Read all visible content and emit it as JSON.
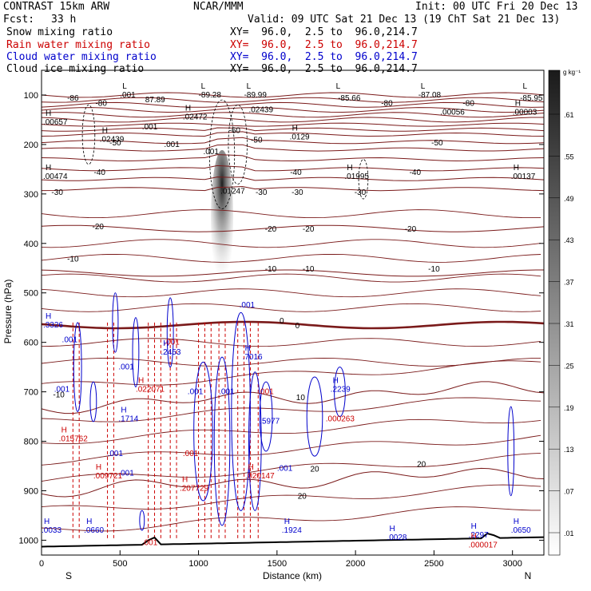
{
  "header": {
    "model": "CONTRAST 15km ARW",
    "org": "NCAR/MMM",
    "init": "Init: 00 UTC Fri 20 Dec 13",
    "fcst_label": "Fcst:",
    "fcst_value": "33 h",
    "valid": "Valid: 09 UTC Sat 21 Dec 13 (19 ChT Sat 21 Dec 13)",
    "fields": [
      {
        "name": "Snow mixing ratio",
        "xy": "XY=  96.0,  2.5 to  96.0,214.7",
        "color": "#000000"
      },
      {
        "name": "Rain water mixing ratio",
        "xy": "XY=  96.0,  2.5 to  96.0,214.7",
        "color": "#cc0000"
      },
      {
        "name": "Cloud water mixing ratio",
        "xy": "XY=  96.0,  2.5 to  96.0,214.7",
        "color": "#0000cc"
      },
      {
        "name": "Cloud ice mixing ratio",
        "xy": "XY=  96.0,  2.5 to  96.0,214.7",
        "color": "#000000"
      }
    ]
  },
  "colorbar": {
    "unit": "g kg⁻¹",
    "levels": [
      ".01",
      ".07",
      ".13",
      ".19",
      ".25",
      ".31",
      ".37",
      ".43",
      ".49",
      ".55",
      ".61"
    ]
  },
  "chart_data": {
    "type": "contour cross-section",
    "xlabel": "Distance (km)",
    "ylabel": "Pressure (hPa)",
    "xlim": [
      0,
      3200
    ],
    "ylim": [
      1030,
      50
    ],
    "x_ticks": [
      "0",
      "500",
      "1000",
      "1500",
      "2000",
      "2500",
      "3000"
    ],
    "y_ticks": [
      "100",
      "200",
      "300",
      "400",
      "500",
      "600",
      "700",
      "800",
      "900",
      "1000"
    ],
    "x_end_labels": {
      "left": "S",
      "right": "N"
    },
    "temperature_contours": [
      {
        "label": "-80",
        "p": 110
      },
      {
        "label": "-50",
        "p": 180
      },
      {
        "label": "-40",
        "p": 250
      },
      {
        "label": "-30",
        "p": 290
      },
      {
        "label": "-20",
        "p": 370
      },
      {
        "label": "-10",
        "p": 460
      },
      {
        "label": "0",
        "p": 565
      },
      {
        "label": "10",
        "p": 730
      },
      {
        "label": "20",
        "p": 900
      }
    ],
    "temp_labels": [
      {
        "t": "-86",
        "x": 200,
        "p": 105
      },
      {
        "t": "-80",
        "x": 380,
        "p": 115
      },
      {
        "t": "-85.66",
        "x": 1960,
        "p": 105
      },
      {
        "t": "-80",
        "x": 2200,
        "p": 115
      },
      {
        "t": "-80",
        "x": 2720,
        "p": 115
      },
      {
        "t": "-85.95",
        "x": 3120,
        "p": 105
      },
      {
        "t": "-60",
        "x": 1230,
        "p": 170
      },
      {
        "t": "-50",
        "x": 470,
        "p": 195
      },
      {
        "t": "-50",
        "x": 1370,
        "p": 190
      },
      {
        "t": "-50",
        "x": 2520,
        "p": 195
      },
      {
        "t": "-40",
        "x": 370,
        "p": 255
      },
      {
        "t": "-40",
        "x": 1620,
        "p": 255
      },
      {
        "t": "-40",
        "x": 2380,
        "p": 255
      },
      {
        "t": "-30",
        "x": 100,
        "p": 295
      },
      {
        "t": "-30",
        "x": 1400,
        "p": 295
      },
      {
        "t": "-30",
        "x": 1630,
        "p": 295
      },
      {
        "t": "-30",
        "x": 2030,
        "p": 295
      },
      {
        "t": "-20",
        "x": 360,
        "p": 365
      },
      {
        "t": "-20",
        "x": 1460,
        "p": 370
      },
      {
        "t": "-20",
        "x": 1700,
        "p": 370
      },
      {
        "t": "-20",
        "x": 2350,
        "p": 370
      },
      {
        "t": "-10",
        "x": 200,
        "p": 430
      },
      {
        "t": "-10",
        "x": 1460,
        "p": 450
      },
      {
        "t": "-10",
        "x": 1700,
        "p": 450
      },
      {
        "t": "-10",
        "x": 2500,
        "p": 450
      },
      {
        "t": "0",
        "x": 1530,
        "p": 555
      },
      {
        "t": "0",
        "x": 1630,
        "p": 565
      },
      {
        "t": "-10",
        "x": 110,
        "p": 705
      },
      {
        "t": "10",
        "x": 1650,
        "p": 710
      },
      {
        "t": "20",
        "x": 1740,
        "p": 855
      },
      {
        "t": "20",
        "x": 2420,
        "p": 845
      },
      {
        "t": "20",
        "x": 1660,
        "p": 910
      }
    ],
    "extrema_labels": [
      {
        "k": "L",
        "v": ".001",
        "x": 500,
        "p": 95,
        "c": "#000"
      },
      {
        "k": "",
        "v": "87.89",
        "x": 660,
        "p": 105,
        "c": "#000"
      },
      {
        "k": "L",
        "v": "-89.28",
        "x": 1000,
        "p": 95,
        "c": "#000"
      },
      {
        "k": "L",
        "v": "-89.99",
        "x": 1290,
        "p": 95,
        "c": "#000"
      },
      {
        "k": "",
        "v": ".02439",
        "x": 1320,
        "p": 125,
        "c": "#000"
      },
      {
        "k": "L",
        "v": "",
        "x": 1860,
        "p": 95,
        "c": "#000"
      },
      {
        "k": "L",
        "v": "-87.08",
        "x": 2400,
        "p": 95,
        "c": "#000"
      },
      {
        "k": "",
        "v": ".00056",
        "x": 2540,
        "p": 130,
        "c": "#000"
      },
      {
        "k": "L",
        "v": "",
        "x": 3050,
        "p": 95,
        "c": "#000"
      },
      {
        "k": "H",
        "v": ".00003",
        "x": 3000,
        "p": 130,
        "c": "#000"
      },
      {
        "k": "H",
        "v": ".00657",
        "x": 10,
        "p": 150,
        "c": "#000"
      },
      {
        "k": "H",
        "v": ".02472",
        "x": 900,
        "p": 140,
        "c": "#000"
      },
      {
        "k": "",
        "v": ".001",
        "x": 640,
        "p": 160,
        "c": "#000"
      },
      {
        "k": "H",
        "v": ".02439",
        "x": 370,
        "p": 185,
        "c": "#000"
      },
      {
        "k": "",
        "v": ".001",
        "x": 780,
        "p": 195,
        "c": "#000"
      },
      {
        "k": "",
        "v": ".001",
        "x": 1030,
        "p": 210,
        "c": "#000"
      },
      {
        "k": "H",
        "v": ".0129",
        "x": 1580,
        "p": 180,
        "c": "#000"
      },
      {
        "k": "H",
        "v": ".00474",
        "x": 10,
        "p": 260,
        "c": "#000"
      },
      {
        "k": "H",
        "v": ".01995",
        "x": 1930,
        "p": 260,
        "c": "#000"
      },
      {
        "k": "H",
        "v": ".00137",
        "x": 2990,
        "p": 260,
        "c": "#000"
      },
      {
        "k": "",
        "v": ".01247",
        "x": 1140,
        "p": 290,
        "c": "#000"
      },
      {
        "k": "H",
        "v": ".3326",
        "x": 10,
        "p": 560,
        "c": "#0000cc"
      },
      {
        "k": "",
        "v": ".001",
        "x": 130,
        "p": 590,
        "c": "#0000cc"
      },
      {
        "k": "",
        "v": ".001",
        "x": 1260,
        "p": 520,
        "c": "#0000cc"
      },
      {
        "k": "H",
        "v": ".2453",
        "x": 760,
        "p": 615,
        "c": "#0000cc"
      },
      {
        "k": "",
        "v": ".001",
        "x": 780,
        "p": 595,
        "c": "#cc0000"
      },
      {
        "k": "H",
        "v": ".7016",
        "x": 1280,
        "p": 625,
        "c": "#0000cc"
      },
      {
        "k": "",
        "v": ".001",
        "x": 490,
        "p": 645,
        "c": "#0000cc"
      },
      {
        "k": "H",
        "v": ".022071",
        "x": 600,
        "p": 690,
        "c": "#cc0000"
      },
      {
        "k": "",
        "v": ".001",
        "x": 80,
        "p": 690,
        "c": "#0000cc"
      },
      {
        "k": "",
        "v": ".001",
        "x": 930,
        "p": 695,
        "c": "#0000cc"
      },
      {
        "k": "",
        "v": ".001",
        "x": 1130,
        "p": 695,
        "c": "#0000cc"
      },
      {
        "k": "",
        "v": ".001",
        "x": 1380,
        "p": 695,
        "c": "#cc0000"
      },
      {
        "k": "H",
        "v": ".2239",
        "x": 1840,
        "p": 690,
        "c": "#0000cc"
      },
      {
        "k": "H",
        "v": ".1714",
        "x": 490,
        "p": 750,
        "c": "#0000cc"
      },
      {
        "k": "",
        "v": ".5977",
        "x": 1390,
        "p": 755,
        "c": "#0000cc"
      },
      {
        "k": "",
        "v": ".000263",
        "x": 1810,
        "p": 750,
        "c": "#cc0000"
      },
      {
        "k": "H",
        "v": ".015762",
        "x": 110,
        "p": 790,
        "c": "#cc0000"
      },
      {
        "k": "",
        "v": ".001",
        "x": 420,
        "p": 820,
        "c": "#0000cc"
      },
      {
        "k": "",
        "v": ".001",
        "x": 900,
        "p": 820,
        "c": "#cc0000"
      },
      {
        "k": "",
        "v": ".001",
        "x": 490,
        "p": 860,
        "c": "#0000cc"
      },
      {
        "k": "H",
        "v": ".009721",
        "x": 330,
        "p": 865,
        "c": "#cc0000"
      },
      {
        "k": "",
        "v": ".001",
        "x": 1500,
        "p": 850,
        "c": "#0000cc"
      },
      {
        "k": "H",
        "v": ".020147",
        "x": 1300,
        "p": 865,
        "c": "#cc0000"
      },
      {
        "k": "H",
        "v": ".207729",
        "x": 880,
        "p": 890,
        "c": "#cc0000"
      },
      {
        "k": "H",
        "v": ".0033",
        "x": 0,
        "p": 975,
        "c": "#0000cc"
      },
      {
        "k": "H",
        "v": ".0660",
        "x": 270,
        "p": 975,
        "c": "#0000cc"
      },
      {
        "k": "H",
        "v": ".1924",
        "x": 1530,
        "p": 975,
        "c": "#0000cc"
      },
      {
        "k": "H",
        "v": ".0028",
        "x": 2200,
        "p": 990,
        "c": "#0000cc"
      },
      {
        "k": "H",
        "v": ".2297",
        "x": 2720,
        "p": 985,
        "c": "#0000cc"
      },
      {
        "k": "H",
        "v": ".000017",
        "x": 2720,
        "p": 1005,
        "c": "#cc0000"
      },
      {
        "k": "H",
        "v": ".0650",
        "x": 2990,
        "p": 975,
        "c": "#0000cc"
      },
      {
        "k": "",
        "v": ".001",
        "x": 640,
        "p": 1000,
        "c": "#cc0000"
      }
    ],
    "shading_max": {
      "x": 1150,
      "p": 300
    }
  }
}
